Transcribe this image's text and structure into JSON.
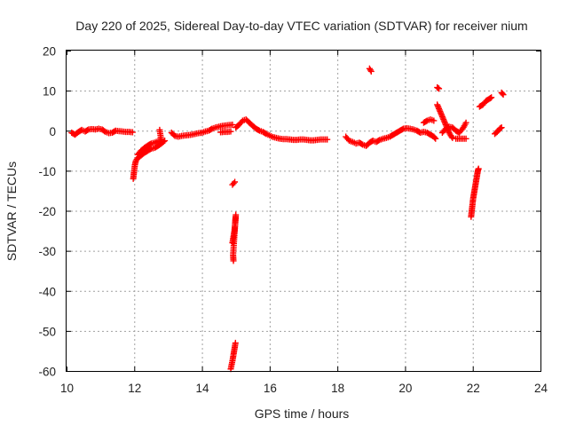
{
  "chart_data": {
    "type": "scatter",
    "title": "Day 220 of 2025, Sidereal Day-to-day VTEC variation (SDTVAR) for receiver nium",
    "xlabel": "GPS time / hours",
    "ylabel": "SDTVAR / TECUs",
    "xlim": [
      10,
      24
    ],
    "ylim": [
      -60,
      20
    ],
    "xticks": [
      "10",
      "12",
      "14",
      "16",
      "18",
      "20",
      "22",
      "24"
    ],
    "yticks": [
      "20",
      "10",
      "0",
      "-10",
      "-20",
      "-30",
      "-40",
      "-50",
      "-60"
    ],
    "grid": true,
    "marker": "+",
    "series": [
      {
        "name": "SDTVAR",
        "color": "#ff0000",
        "segments": [
          [
            [
              10.15,
              -0.5
            ],
            [
              10.25,
              -1.0
            ],
            [
              10.35,
              -0.3
            ],
            [
              10.45,
              0.2
            ],
            [
              10.55,
              -0.2
            ],
            [
              10.65,
              0.3
            ],
            [
              10.75,
              0.4
            ],
            [
              10.85,
              0.3
            ],
            [
              10.95,
              0.5
            ],
            [
              11.05,
              0.3
            ],
            [
              11.15,
              -0.3
            ],
            [
              11.25,
              -0.6
            ],
            [
              11.35,
              -0.5
            ],
            [
              11.45,
              0.0
            ],
            [
              11.55,
              -0.1
            ],
            [
              11.65,
              -0.2
            ],
            [
              11.75,
              -0.3
            ],
            [
              11.85,
              -0.3
            ],
            [
              11.95,
              -0.4
            ]
          ],
          [
            [
              11.97,
              -12.0
            ],
            [
              11.99,
              -10.5
            ],
            [
              12.02,
              -8.5
            ],
            [
              12.05,
              -7.5
            ],
            [
              12.1,
              -6.8
            ],
            [
              12.2,
              -6.2
            ],
            [
              12.3,
              -5.5
            ],
            [
              12.4,
              -5.0
            ],
            [
              12.5,
              -4.5
            ],
            [
              12.6,
              -4.3
            ],
            [
              12.7,
              -3.8
            ],
            [
              12.8,
              -3.2
            ],
            [
              12.9,
              -2.5
            ]
          ],
          [
            [
              12.1,
              -6.0
            ],
            [
              12.2,
              -5.0
            ],
            [
              12.3,
              -4.3
            ],
            [
              12.4,
              -3.7
            ],
            [
              12.5,
              -3.2
            ],
            [
              12.6,
              -3.0
            ],
            [
              12.7,
              -2.6
            ],
            [
              12.8,
              -2.5
            ],
            [
              12.75,
              0.2
            ]
          ],
          [
            [
              13.1,
              -0.5
            ],
            [
              13.2,
              -1.3
            ],
            [
              13.3,
              -1.5
            ],
            [
              13.4,
              -1.3
            ],
            [
              13.5,
              -1.2
            ],
            [
              13.6,
              -1.1
            ],
            [
              13.7,
              -1.0
            ],
            [
              13.8,
              -0.8
            ],
            [
              13.9,
              -0.6
            ],
            [
              14.0,
              -0.5
            ],
            [
              14.1,
              -0.2
            ],
            [
              14.2,
              0.0
            ],
            [
              14.3,
              0.5
            ],
            [
              14.4,
              0.8
            ],
            [
              14.5,
              1.0
            ],
            [
              14.6,
              1.2
            ],
            [
              14.7,
              1.3
            ],
            [
              14.8,
              1.4
            ],
            [
              14.9,
              1.5
            ]
          ],
          [
            [
              14.55,
              -0.4
            ],
            [
              14.65,
              -0.3
            ],
            [
              14.75,
              -0.3
            ],
            [
              14.85,
              -0.2
            ]
          ],
          [
            [
              15.0,
              0.8
            ],
            [
              15.1,
              1.5
            ],
            [
              15.2,
              2.5
            ],
            [
              15.3,
              2.8
            ],
            [
              15.4,
              2.0
            ],
            [
              15.5,
              1.2
            ],
            [
              15.6,
              0.5
            ],
            [
              15.7,
              0.0
            ],
            [
              15.8,
              -0.3
            ],
            [
              15.9,
              -0.8
            ],
            [
              16.0,
              -1.2
            ],
            [
              16.1,
              -1.6
            ],
            [
              16.2,
              -1.8
            ],
            [
              16.3,
              -2.0
            ],
            [
              16.4,
              -2.1
            ],
            [
              16.5,
              -2.1
            ],
            [
              16.6,
              -2.2
            ],
            [
              16.7,
              -2.3
            ],
            [
              16.8,
              -2.3
            ],
            [
              16.9,
              -2.2
            ],
            [
              17.0,
              -2.2
            ],
            [
              17.1,
              -2.3
            ],
            [
              17.2,
              -2.4
            ],
            [
              17.3,
              -2.4
            ],
            [
              17.4,
              -2.3
            ],
            [
              17.5,
              -2.2
            ],
            [
              17.6,
              -2.2
            ],
            [
              17.7,
              -2.2
            ]
          ],
          [
            [
              14.9,
              -13.5
            ],
            [
              14.97,
              -12.8
            ]
          ],
          [
            [
              14.9,
              -28.0
            ],
            [
              14.93,
              -26.5
            ],
            [
              14.96,
              -25.0
            ],
            [
              14.98,
              -23.0
            ],
            [
              15.0,
              -21.0
            ],
            [
              14.92,
              -31.0
            ],
            [
              14.93,
              -32.5
            ]
          ],
          [
            [
              14.85,
              -59.5
            ],
            [
              14.9,
              -57.5
            ],
            [
              14.93,
              -56.0
            ],
            [
              14.96,
              -54.5
            ],
            [
              14.99,
              -53.0
            ]
          ],
          [
            [
              18.25,
              -1.5
            ],
            [
              18.35,
              -2.5
            ],
            [
              18.45,
              -2.8
            ],
            [
              18.55,
              -3.2
            ],
            [
              18.65,
              -3.0
            ],
            [
              18.75,
              -3.5
            ],
            [
              18.85,
              -3.8
            ],
            [
              18.95,
              -3.0
            ],
            [
              19.05,
              -2.5
            ],
            [
              19.15,
              -2.8
            ],
            [
              19.25,
              -2.3
            ],
            [
              19.35,
              -2.0
            ],
            [
              19.45,
              -1.8
            ],
            [
              19.55,
              -1.5
            ],
            [
              19.65,
              -1.0
            ],
            [
              19.75,
              -0.5
            ],
            [
              19.85,
              0.0
            ],
            [
              19.95,
              0.5
            ],
            [
              20.05,
              0.6
            ],
            [
              20.15,
              0.5
            ],
            [
              20.25,
              0.3
            ],
            [
              20.35,
              0.0
            ],
            [
              20.45,
              -0.5
            ],
            [
              20.55,
              -0.3
            ],
            [
              20.65,
              -0.5
            ],
            [
              20.75,
              -1.0
            ],
            [
              20.85,
              -1.5
            ],
            [
              20.9,
              -2.0
            ]
          ],
          [
            [
              18.95,
              15.5
            ],
            [
              19.0,
              14.8
            ]
          ],
          [
            [
              20.55,
              2.0
            ],
            [
              20.65,
              2.5
            ],
            [
              20.75,
              2.8
            ],
            [
              20.85,
              2.5
            ]
          ],
          [
            [
              20.95,
              10.8
            ],
            [
              21.0,
              10.5
            ]
          ],
          [
            [
              20.95,
              6.5
            ],
            [
              21.0,
              5.5
            ],
            [
              21.05,
              4.5
            ],
            [
              21.1,
              3.5
            ],
            [
              21.15,
              2.5
            ],
            [
              21.2,
              1.5
            ],
            [
              21.25,
              0.5
            ],
            [
              21.3,
              -0.5
            ],
            [
              21.35,
              -1.2
            ],
            [
              21.4,
              -1.8
            ]
          ],
          [
            [
              21.1,
              -0.5
            ],
            [
              21.2,
              0.5
            ],
            [
              21.3,
              1.0
            ],
            [
              21.4,
              0.8
            ],
            [
              21.5,
              0.0
            ],
            [
              21.6,
              -0.5
            ],
            [
              21.7,
              0.5
            ],
            [
              21.75,
              1.2
            ],
            [
              21.8,
              2.0
            ]
          ],
          [
            [
              21.5,
              -2.0
            ],
            [
              21.8,
              -2.0
            ]
          ],
          [
            [
              21.95,
              -21.5
            ],
            [
              21.97,
              -20.0
            ],
            [
              21.99,
              -18.5
            ],
            [
              22.01,
              -17.0
            ],
            [
              22.03,
              -16.0
            ],
            [
              22.05,
              -15.0
            ],
            [
              22.07,
              -14.0
            ],
            [
              22.09,
              -13.0
            ],
            [
              22.11,
              -12.0
            ],
            [
              22.13,
              -11.0
            ],
            [
              22.15,
              -10.0
            ],
            [
              22.17,
              -9.5
            ]
          ],
          [
            [
              22.2,
              6.0
            ],
            [
              22.3,
              6.5
            ],
            [
              22.4,
              7.5
            ],
            [
              22.5,
              8.0
            ],
            [
              22.55,
              8.3
            ]
          ],
          [
            [
              22.85,
              9.5
            ],
            [
              22.9,
              9.0
            ]
          ],
          [
            [
              22.65,
              -0.8
            ],
            [
              22.72,
              -0.3
            ],
            [
              22.8,
              0.5
            ],
            [
              22.85,
              0.8
            ]
          ]
        ]
      }
    ]
  }
}
